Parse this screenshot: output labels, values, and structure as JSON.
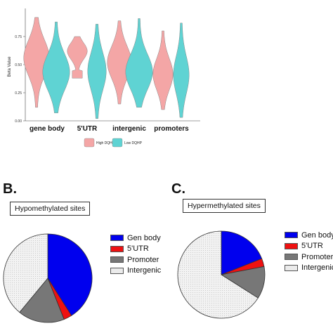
{
  "panel_a": {
    "y_axis_label": "Beta Value",
    "legend": {
      "high_label": "High DQHP",
      "low_label": "Low DQHP"
    },
    "colors": {
      "high": "#f4a6a6",
      "low": "#5fd3d3"
    }
  },
  "panel_b": {
    "letter": "B.",
    "title": "Hypomethylated sites"
  },
  "panel_c": {
    "letter": "C.",
    "title": "Hypermethylated sites"
  },
  "chart_data": [
    {
      "type": "violin",
      "categories": [
        "gene body",
        "5'UTR",
        "intergenic",
        "promoters"
      ],
      "series": [
        {
          "name": "High DQHP",
          "color": "#f4a6a6",
          "ranges": [
            [
              0.12,
              0.92
            ],
            [
              0.38,
              0.75
            ],
            [
              0.15,
              0.89
            ],
            [
              0.1,
              0.8
            ]
          ]
        },
        {
          "name": "Low DQHP",
          "color": "#5fd3d3",
          "ranges": [
            [
              0.07,
              0.88
            ],
            [
              0.02,
              0.86
            ],
            [
              0.12,
              0.91
            ],
            [
              0.03,
              0.87
            ]
          ]
        }
      ],
      "ylabel": "Beta Value",
      "ylim": [
        0,
        1
      ],
      "yticks": [
        "0.00",
        "0.25",
        "0.50",
        "0.75"
      ]
    },
    {
      "type": "pie",
      "title": "Hypomethylated sites",
      "labels": [
        "Gen body",
        "5'UTR",
        "Promoter",
        "Intergenic"
      ],
      "values": [
        41,
        3,
        17,
        39
      ],
      "colors": [
        "#0000ee",
        "#ee1111",
        "#777777",
        "#ebebeb"
      ]
    },
    {
      "type": "pie",
      "title": "Hypermethylated sites",
      "labels": [
        "Gen body",
        "5'UTR",
        "Promoter",
        "Intergenic"
      ],
      "values": [
        19,
        3,
        12,
        66
      ],
      "colors": [
        "#0000ee",
        "#ee1111",
        "#777777",
        "#ebebeb"
      ]
    }
  ]
}
